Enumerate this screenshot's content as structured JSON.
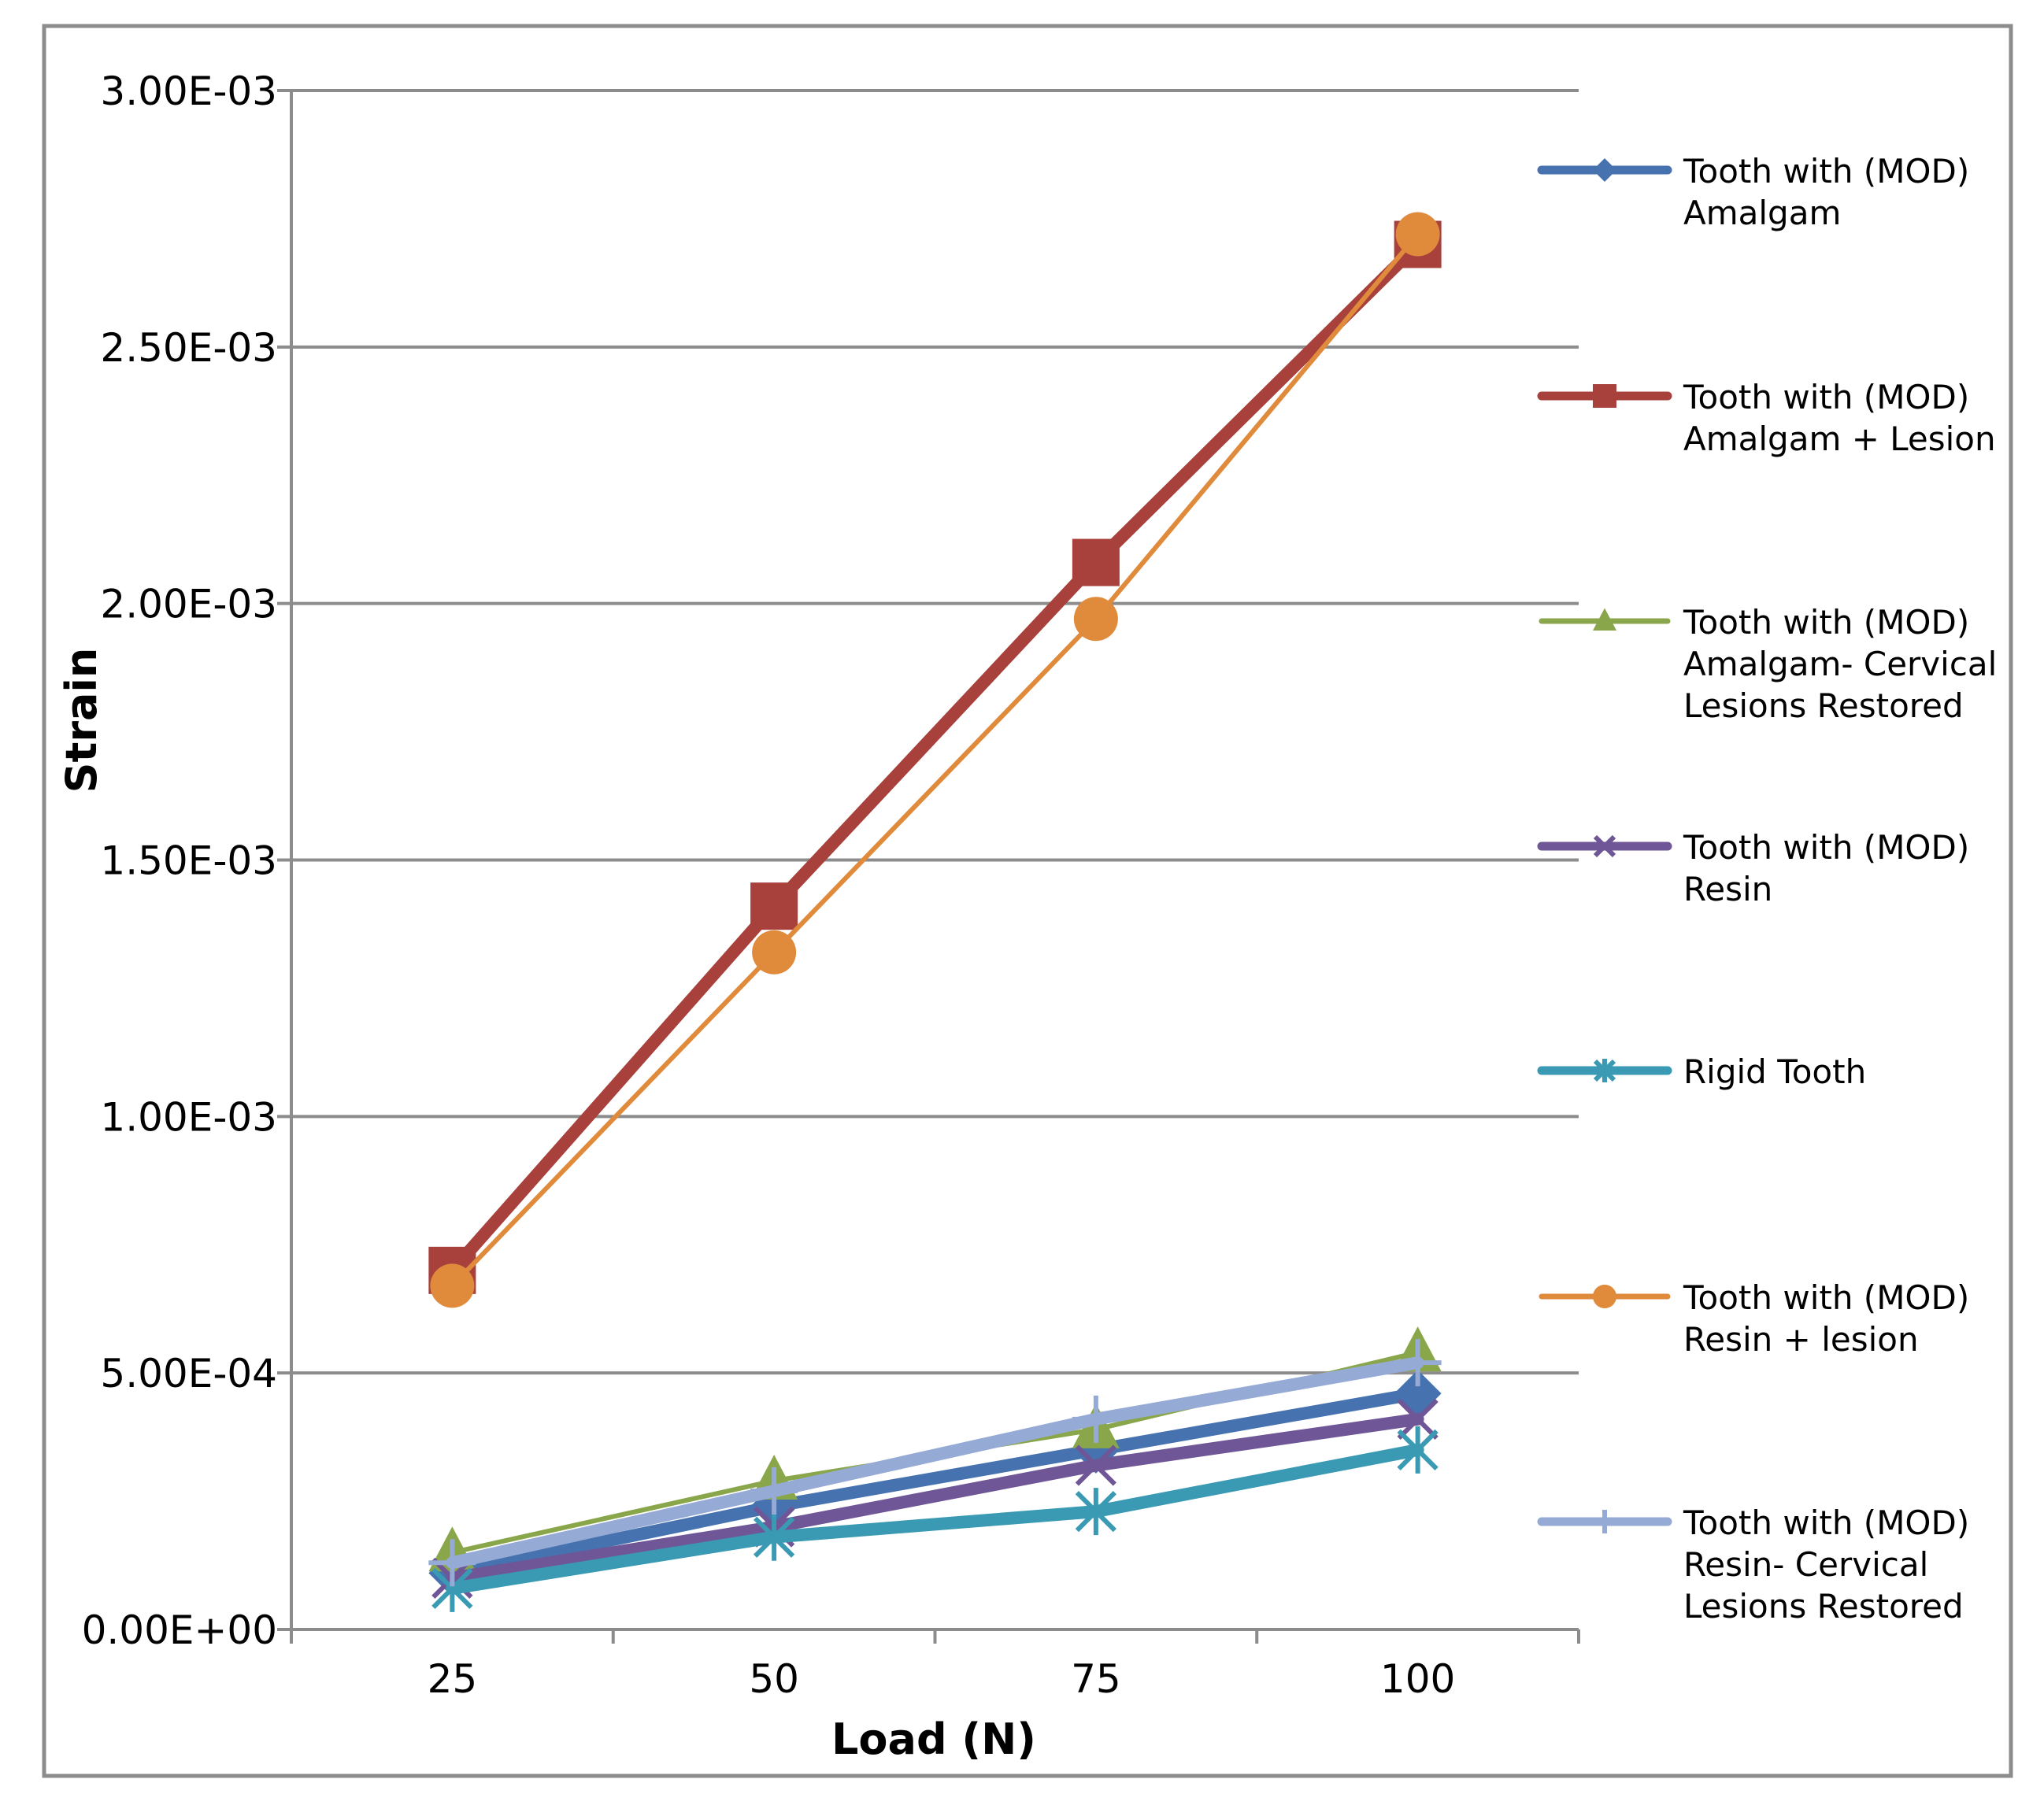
{
  "chart_data": {
    "type": "line",
    "title": "",
    "xlabel": "Load (N)",
    "ylabel": "Strain",
    "categories": [
      "25",
      "50",
      "75",
      "100"
    ],
    "ylim": [
      0,
      0.003
    ],
    "y_ticks": [
      0,
      0.0005,
      0.001,
      0.0015,
      0.002,
      0.0025,
      0.003
    ],
    "y_tick_labels": [
      "0.00E+00",
      "5.00E-04",
      "1.00E-03",
      "1.50E-03",
      "2.00E-03",
      "2.50E-03",
      "3.00E-03"
    ],
    "grid": true,
    "legend_position": "right",
    "series": [
      {
        "name": "Tooth with (MOD) Amalgam",
        "legend_lines": [
          "Tooth with (MOD)",
          "Amalgam"
        ],
        "values": [
          0.00011,
          0.00024,
          0.00035,
          0.00046
        ],
        "color": "#4672B0",
        "marker": "diamond",
        "width": "thick"
      },
      {
        "name": "Tooth with (MOD) Amalgam + Lesion",
        "legend_lines": [
          "Tooth with (MOD)",
          "Amalgam + Lesion"
        ],
        "values": [
          0.0007,
          0.00141,
          0.00208,
          0.0027
        ],
        "color": "#A8403C",
        "marker": "square",
        "width": "thick"
      },
      {
        "name": "Tooth with (MOD) Amalgam- Cervical Lesions Restored",
        "legend_lines": [
          "Tooth with (MOD)",
          "Amalgam- Cervical",
          "Lesions Restored"
        ],
        "values": [
          0.00015,
          0.00029,
          0.00039,
          0.00054
        ],
        "color": "#8AA64A",
        "marker": "triangle",
        "width": "thin"
      },
      {
        "name": "Tooth with (MOD) Resin",
        "legend_lines": [
          "Tooth with (MOD)",
          "Resin"
        ],
        "values": [
          0.0001,
          0.0002,
          0.00032,
          0.00041
        ],
        "color": "#6F5696",
        "marker": "x",
        "width": "thick"
      },
      {
        "name": "Rigid  Tooth",
        "legend_lines": [
          "Rigid  Tooth"
        ],
        "values": [
          8e-05,
          0.00018,
          0.00023,
          0.00035
        ],
        "color": "#3A9AB3",
        "marker": "asterisk",
        "width": "thick"
      },
      {
        "name": "Tooth with (MOD) Resin + lesion",
        "legend_lines": [
          "Tooth with (MOD)",
          "Resin + lesion"
        ],
        "values": [
          0.00067,
          0.00132,
          0.00197,
          0.00272
        ],
        "color": "#E08A3C",
        "marker": "circle",
        "width": "thin"
      },
      {
        "name": "Tooth with (MOD) Resin- Cervical Lesions Restored",
        "legend_lines": [
          "Tooth with (MOD)",
          "Resin- Cervical",
          "Lesions Restored"
        ],
        "values": [
          0.00013,
          0.00027,
          0.00041,
          0.00052
        ],
        "color": "#95AAD4",
        "marker": "plus",
        "width": "thick"
      }
    ]
  }
}
